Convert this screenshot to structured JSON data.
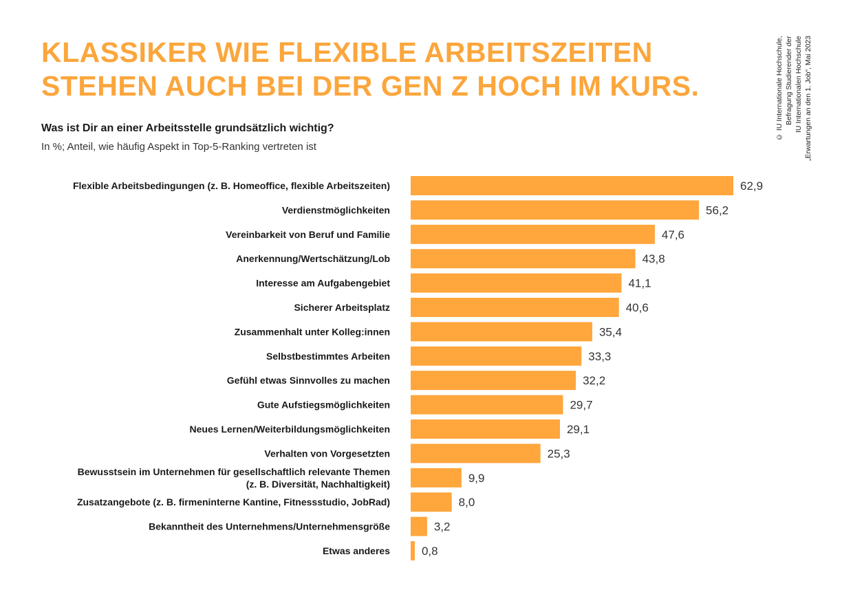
{
  "header": {
    "title_lines": [
      "KLASSIKER WIE FLEXIBLE ARBEITSZEITEN",
      "STEHEN AUCH BEI DER GEN Z HOCH IM KURS."
    ],
    "question": "Was ist Dir an einer Arbeitsstelle grundsätzlich wichtig?",
    "unit_note": "In %; Anteil, wie häufig Aspekt in Top-5-Ranking vertreten ist"
  },
  "source_lines": [
    "© IU Internationale Hochschule,",
    "Befragung Studierender der",
    "IU Internationalen Hochschule",
    "„Erwartungen an den 1. Job“, Mai 2023"
  ],
  "chart_data": {
    "type": "bar",
    "orientation": "horizontal",
    "bar_color": "#FFA63C",
    "title_color": "#FBA63C",
    "categories": [
      [
        "Flexible Arbeitsbedingungen (z. B. Homeoffice, flexible Arbeitszeiten)"
      ],
      [
        "Verdienstmöglichkeiten"
      ],
      [
        "Vereinbarkeit von Beruf und Familie"
      ],
      [
        "Anerkennung/Wertschätzung/Lob"
      ],
      [
        "Interesse am Aufgabengebiet"
      ],
      [
        "Sicherer Arbeitsplatz"
      ],
      [
        "Zusammenhalt unter Kolleg:innen"
      ],
      [
        "Selbstbestimmtes Arbeiten"
      ],
      [
        "Gefühl etwas Sinnvolles zu machen"
      ],
      [
        "Gute Aufstiegsmöglichkeiten"
      ],
      [
        "Neues Lernen/Weiterbildungsmöglichkeiten"
      ],
      [
        "Verhalten von Vorgesetzten"
      ],
      [
        "Bewusstsein im Unternehmen für gesellschaftlich relevante Themen",
        "(z. B. Diversität, Nachhaltigkeit)"
      ],
      [
        "Zusatzangebote (z. B. firmeninterne Kantine, Fitnessstudio, JobRad)"
      ],
      [
        "Bekanntheit des Unternehmens/Unternehmensgröße"
      ],
      [
        "Etwas anderes"
      ]
    ],
    "values": [
      62.9,
      56.2,
      47.6,
      43.8,
      41.1,
      40.6,
      35.4,
      33.3,
      32.2,
      29.7,
      29.1,
      25.3,
      9.9,
      8.0,
      3.2,
      0.8
    ],
    "value_labels": [
      "62,9",
      "56,2",
      "47,6",
      "43,8",
      "41,1",
      "40,6",
      "35,4",
      "33,3",
      "32,2",
      "29,7",
      "29,1",
      "25,3",
      "9,9",
      "8,0",
      "3,2",
      "0,8"
    ],
    "xlim": [
      0,
      62.9
    ],
    "grid": false,
    "legend": "none"
  }
}
